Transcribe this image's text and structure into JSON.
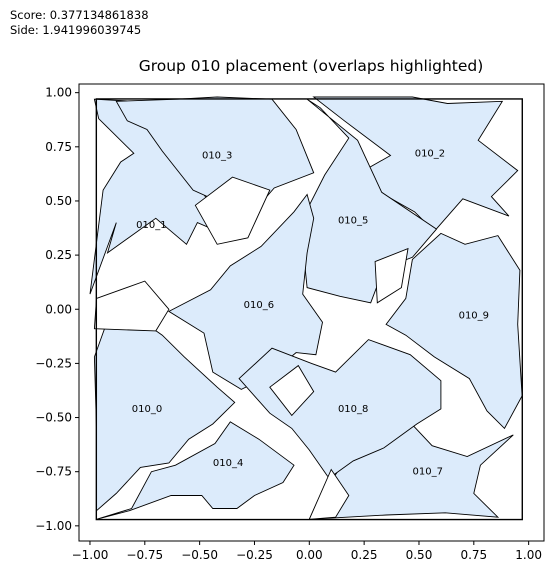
{
  "header": {
    "score_line": "Score: 0.377134861838",
    "side_line": "Side: 1.941996039745"
  },
  "chart_data": {
    "type": "scatter",
    "title": "Group 010 placement (overlaps highlighted)",
    "xlabel": "",
    "ylabel": "",
    "xlim": [
      -1.05,
      1.07
    ],
    "ylim": [
      -1.07,
      1.04
    ],
    "grid": false,
    "x_ticks": [
      -1.0,
      -0.75,
      -0.5,
      -0.25,
      0.0,
      0.25,
      0.5,
      0.75,
      1.0
    ],
    "x_tick_labels": [
      "−1.00",
      "−0.75",
      "−0.50",
      "−0.25",
      "0.00",
      "0.25",
      "0.50",
      "0.75",
      "1.00"
    ],
    "y_ticks": [
      1.0,
      0.75,
      0.5,
      0.25,
      0.0,
      -0.25,
      -0.5,
      -0.75,
      -1.0
    ],
    "y_tick_labels": [
      "1.00",
      "0.75",
      "0.50",
      "0.25",
      "0.00",
      "−0.25",
      "−0.50",
      "−0.75",
      "−1.00"
    ],
    "container_square": {
      "x0": -0.971,
      "y0": -0.971,
      "x1": 0.971,
      "y1": 0.971
    },
    "colors": {
      "piece_fill": "#dcebfb",
      "piece_stroke": "#000000",
      "container_stroke": "#000000"
    },
    "pieces": [
      {
        "name": "010_1",
        "label_xy": [
          -0.72,
          0.39
        ],
        "outline": [
          [
            -0.98,
            0.97
          ],
          [
            -0.8,
            0.96
          ],
          [
            -0.55,
            0.96
          ],
          [
            -0.71,
            0.92
          ],
          [
            -0.36,
            0.73
          ],
          [
            -0.52,
            0.59
          ],
          [
            -0.35,
            0.33
          ],
          [
            -0.51,
            0.4
          ],
          [
            -0.56,
            0.3
          ],
          [
            -0.7,
            0.42
          ],
          [
            -0.92,
            0.26
          ],
          [
            -0.88,
            0.4
          ],
          [
            -1.0,
            0.07
          ],
          [
            -0.94,
            0.55
          ],
          [
            -0.86,
            0.68
          ],
          [
            -0.8,
            0.72
          ],
          [
            -0.96,
            0.88
          ]
        ]
      },
      {
        "name": "010_2",
        "label_xy": [
          0.55,
          0.72
        ],
        "outline": [
          [
            0.02,
            0.98
          ],
          [
            0.47,
            0.98
          ],
          [
            0.63,
            0.95
          ],
          [
            0.88,
            0.96
          ],
          [
            0.77,
            0.78
          ],
          [
            0.95,
            0.64
          ],
          [
            0.83,
            0.52
          ],
          [
            0.91,
            0.43
          ],
          [
            0.7,
            0.51
          ],
          [
            0.57,
            0.36
          ],
          [
            0.48,
            0.45
          ],
          [
            0.34,
            0.53
          ],
          [
            0.23,
            0.63
          ],
          [
            0.37,
            0.71
          ],
          [
            0.16,
            0.87
          ]
        ]
      },
      {
        "name": "010_3",
        "label_xy": [
          -0.42,
          0.71
        ],
        "outline": [
          [
            -0.88,
            0.96
          ],
          [
            -0.6,
            0.97
          ],
          [
            -0.42,
            0.98
          ],
          [
            -0.17,
            0.97
          ],
          [
            -0.06,
            0.83
          ],
          [
            0.02,
            0.63
          ],
          [
            -0.16,
            0.56
          ],
          [
            -0.34,
            0.35
          ],
          [
            -0.42,
            0.5
          ],
          [
            -0.53,
            0.55
          ],
          [
            -0.67,
            0.73
          ],
          [
            -0.74,
            0.83
          ],
          [
            -0.83,
            0.87
          ]
        ]
      },
      {
        "name": "010_4",
        "label_xy": [
          -0.37,
          -0.71
        ],
        "outline": [
          [
            -0.97,
            -0.97
          ],
          [
            -0.82,
            -0.93
          ],
          [
            -0.63,
            -0.86
          ],
          [
            -0.49,
            -0.86
          ],
          [
            -0.44,
            -0.92
          ],
          [
            -0.33,
            -0.92
          ],
          [
            -0.25,
            -0.86
          ],
          [
            -0.12,
            -0.8
          ],
          [
            -0.07,
            -0.72
          ],
          [
            -0.23,
            -0.6
          ],
          [
            -0.36,
            -0.52
          ],
          [
            -0.43,
            -0.62
          ],
          [
            -0.61,
            -0.72
          ],
          [
            -0.72,
            -0.75
          ],
          [
            -0.81,
            -0.92
          ]
        ]
      },
      {
        "name": "010_5",
        "label_xy": [
          0.2,
          0.41
        ],
        "outline": [
          [
            -0.01,
            0.97
          ],
          [
            0.22,
            0.78
          ],
          [
            0.33,
            0.54
          ],
          [
            0.58,
            0.37
          ],
          [
            0.47,
            0.24
          ],
          [
            0.34,
            0.19
          ],
          [
            0.28,
            0.03
          ],
          [
            0.14,
            0.06
          ],
          [
            -0.01,
            0.1
          ],
          [
            -0.04,
            0.4
          ],
          [
            0.07,
            0.62
          ],
          [
            0.18,
            0.79
          ],
          [
            0.05,
            0.93
          ]
        ]
      },
      {
        "name": "010_6",
        "label_xy": [
          -0.23,
          0.02
        ],
        "outline": [
          [
            -0.64,
            -0.01
          ],
          [
            -0.45,
            0.09
          ],
          [
            -0.36,
            0.2
          ],
          [
            -0.22,
            0.29
          ],
          [
            -0.07,
            0.45
          ],
          [
            -0.01,
            0.53
          ],
          [
            0.02,
            0.42
          ],
          [
            -0.01,
            0.26
          ],
          [
            -0.03,
            0.07
          ],
          [
            0.06,
            -0.06
          ],
          [
            0.03,
            -0.21
          ],
          [
            -0.06,
            -0.2
          ],
          [
            -0.19,
            -0.31
          ],
          [
            -0.31,
            -0.37
          ],
          [
            -0.44,
            -0.29
          ],
          [
            -0.48,
            -0.11
          ]
        ]
      },
      {
        "name": "010_7",
        "label_xy": [
          0.54,
          -0.75
        ],
        "outline": [
          [
            0.0,
            -0.97
          ],
          [
            0.35,
            -0.95
          ],
          [
            0.62,
            -0.94
          ],
          [
            0.86,
            -0.96
          ],
          [
            0.75,
            -0.85
          ],
          [
            0.78,
            -0.72
          ],
          [
            0.93,
            -0.58
          ],
          [
            0.72,
            -0.68
          ],
          [
            0.56,
            -0.63
          ],
          [
            0.43,
            -0.49
          ],
          [
            0.29,
            -0.63
          ],
          [
            0.17,
            -0.69
          ],
          [
            0.04,
            -0.88
          ]
        ]
      },
      {
        "name": "010_8",
        "label_xy": [
          0.2,
          -0.46
        ],
        "outline": [
          [
            -0.32,
            -0.32
          ],
          [
            -0.17,
            -0.18
          ],
          [
            0.01,
            -0.25
          ],
          [
            0.12,
            -0.29
          ],
          [
            0.27,
            -0.14
          ],
          [
            0.46,
            -0.21
          ],
          [
            0.6,
            -0.33
          ],
          [
            0.6,
            -0.46
          ],
          [
            0.49,
            -0.53
          ],
          [
            0.34,
            -0.64
          ],
          [
            0.2,
            -0.7
          ],
          [
            0.09,
            -0.78
          ],
          [
            0.0,
            -0.65
          ],
          [
            -0.08,
            -0.55
          ],
          [
            -0.18,
            -0.48
          ]
        ]
      },
      {
        "name": "010_9",
        "label_xy": [
          0.75,
          -0.03
        ],
        "outline": [
          [
            0.47,
            0.23
          ],
          [
            0.6,
            0.35
          ],
          [
            0.71,
            0.3
          ],
          [
            0.86,
            0.34
          ],
          [
            0.96,
            0.18
          ],
          [
            0.95,
            -0.07
          ],
          [
            0.97,
            -0.4
          ],
          [
            0.89,
            -0.55
          ],
          [
            0.81,
            -0.47
          ],
          [
            0.73,
            -0.32
          ],
          [
            0.57,
            -0.22
          ],
          [
            0.44,
            -0.12
          ],
          [
            0.35,
            -0.07
          ],
          [
            0.44,
            0.05
          ]
        ]
      },
      {
        "name": "010_0",
        "label_xy": [
          -0.74,
          -0.46
        ],
        "outline": [
          [
            -0.97,
            -0.93
          ],
          [
            -0.88,
            -0.85
          ],
          [
            -0.77,
            -0.73
          ],
          [
            -0.64,
            -0.71
          ],
          [
            -0.55,
            -0.6
          ],
          [
            -0.44,
            -0.53
          ],
          [
            -0.34,
            -0.43
          ],
          [
            -0.42,
            -0.36
          ],
          [
            -0.57,
            -0.22
          ],
          [
            -0.67,
            -0.12
          ],
          [
            -0.81,
            -0.02
          ],
          [
            -0.93,
            -0.08
          ],
          [
            -0.98,
            -0.22
          ],
          [
            -0.97,
            -0.55
          ]
        ]
      }
    ],
    "blank_shapes": [
      [
        [
          -0.97,
          0.05
        ],
        [
          -0.75,
          0.13
        ],
        [
          -0.64,
          0.0
        ],
        [
          -0.7,
          -0.1
        ],
        [
          -0.98,
          -0.09
        ]
      ],
      [
        [
          -0.52,
          0.48
        ],
        [
          -0.35,
          0.61
        ],
        [
          -0.18,
          0.55
        ],
        [
          -0.28,
          0.33
        ],
        [
          -0.42,
          0.3
        ]
      ],
      [
        [
          0.3,
          0.22
        ],
        [
          0.45,
          0.28
        ],
        [
          0.42,
          0.1
        ],
        [
          0.31,
          0.03
        ]
      ],
      [
        [
          -0.18,
          -0.36
        ],
        [
          -0.05,
          -0.26
        ],
        [
          0.02,
          -0.38
        ],
        [
          -0.08,
          -0.49
        ]
      ],
      [
        [
          0.0,
          -0.97
        ],
        [
          0.1,
          -0.74
        ],
        [
          0.18,
          -0.86
        ],
        [
          0.12,
          -0.96
        ]
      ]
    ]
  }
}
